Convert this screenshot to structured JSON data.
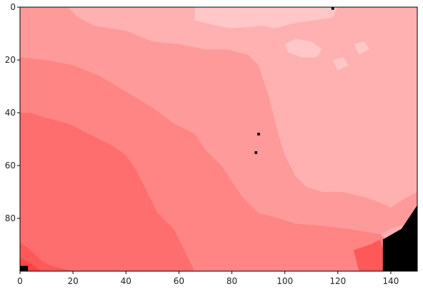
{
  "chart_data": {
    "type": "heatmap",
    "title": "",
    "xlabel": "",
    "ylabel": "",
    "xlim": [
      0,
      150
    ],
    "ylim": [
      100,
      0
    ],
    "grid": false,
    "legend": "none",
    "x_ticks": [
      0,
      20,
      40,
      60,
      80,
      100,
      120,
      140
    ],
    "y_ticks": [
      0,
      20,
      40,
      60,
      80
    ],
    "x_tick_labels": [
      "0",
      "20",
      "40",
      "60",
      "80",
      "100",
      "120",
      "140"
    ],
    "y_tick_labels": [
      "0",
      "20",
      "40",
      "60",
      "80"
    ],
    "levels": [
      {
        "name": "level-1",
        "color": "#ffc7c7"
      },
      {
        "name": "level-2",
        "color": "#ffb0b0"
      },
      {
        "name": "level-3",
        "color": "#ff9a9a"
      },
      {
        "name": "level-4",
        "color": "#ff8484"
      },
      {
        "name": "level-5",
        "color": "#ff6e6e"
      },
      {
        "name": "level-6",
        "color": "#ff5858"
      },
      {
        "name": "level-7",
        "color": "#ff4444"
      },
      {
        "name": "no-data",
        "color": "#000000"
      }
    ],
    "regions": [
      {
        "level": "level-1",
        "points": [
          [
            66,
            0
          ],
          [
            120,
            0
          ],
          [
            118,
            4
          ],
          [
            104,
            6
          ],
          [
            96,
            8
          ],
          [
            92,
            7
          ],
          [
            80,
            8
          ],
          [
            74,
            7
          ],
          [
            66,
            5
          ]
        ]
      },
      {
        "level": "level-1",
        "points": [
          [
            100,
            14
          ],
          [
            104,
            12
          ],
          [
            110,
            13
          ],
          [
            114,
            16
          ],
          [
            112,
            19
          ],
          [
            106,
            19
          ],
          [
            101,
            17
          ]
        ]
      },
      {
        "level": "level-1",
        "points": [
          [
            118,
            20
          ],
          [
            122,
            19
          ],
          [
            124,
            22
          ],
          [
            120,
            24
          ]
        ]
      },
      {
        "level": "level-1",
        "points": [
          [
            126,
            14
          ],
          [
            130,
            13
          ],
          [
            132,
            16
          ],
          [
            128,
            18
          ]
        ]
      },
      {
        "level": "level-3",
        "points": [
          [
            0,
            0
          ],
          [
            18,
            0
          ],
          [
            22,
            4
          ],
          [
            28,
            7
          ],
          [
            40,
            9
          ],
          [
            50,
            13
          ],
          [
            60,
            14
          ],
          [
            70,
            16
          ],
          [
            78,
            16
          ],
          [
            86,
            18
          ],
          [
            90,
            22
          ],
          [
            92,
            28
          ],
          [
            94,
            34
          ],
          [
            96,
            42
          ],
          [
            98,
            50
          ],
          [
            100,
            56
          ],
          [
            104,
            64
          ],
          [
            108,
            68
          ],
          [
            114,
            70
          ],
          [
            122,
            70
          ],
          [
            130,
            72
          ],
          [
            136,
            74
          ],
          [
            140,
            76
          ],
          [
            146,
            72
          ],
          [
            150,
            70
          ],
          [
            150,
            80
          ],
          [
            146,
            82
          ],
          [
            140,
            84
          ],
          [
            136,
            86
          ],
          [
            130,
            85
          ],
          [
            124,
            84
          ],
          [
            116,
            83
          ],
          [
            104,
            82
          ],
          [
            98,
            80
          ],
          [
            90,
            78
          ],
          [
            84,
            72
          ],
          [
            80,
            66
          ],
          [
            76,
            60
          ],
          [
            70,
            54
          ],
          [
            66,
            48
          ],
          [
            58,
            44
          ],
          [
            50,
            38
          ],
          [
            40,
            32
          ],
          [
            30,
            26
          ],
          [
            20,
            22
          ],
          [
            10,
            20
          ],
          [
            0,
            19
          ]
        ]
      },
      {
        "level": "level-4",
        "points": [
          [
            0,
            19
          ],
          [
            10,
            20
          ],
          [
            20,
            22
          ],
          [
            30,
            26
          ],
          [
            40,
            32
          ],
          [
            50,
            38
          ],
          [
            58,
            44
          ],
          [
            66,
            48
          ],
          [
            70,
            54
          ],
          [
            76,
            60
          ],
          [
            80,
            66
          ],
          [
            84,
            72
          ],
          [
            90,
            78
          ],
          [
            98,
            80
          ],
          [
            104,
            82
          ],
          [
            116,
            83
          ],
          [
            124,
            84
          ],
          [
            130,
            85
          ],
          [
            136,
            86
          ],
          [
            138,
            88
          ],
          [
            138,
            100
          ],
          [
            66,
            100
          ],
          [
            62,
            92
          ],
          [
            58,
            84
          ],
          [
            52,
            78
          ],
          [
            48,
            70
          ],
          [
            44,
            62
          ],
          [
            40,
            56
          ],
          [
            34,
            52
          ],
          [
            26,
            48
          ],
          [
            18,
            44
          ],
          [
            10,
            42
          ],
          [
            4,
            40
          ],
          [
            0,
            40
          ]
        ]
      },
      {
        "level": "level-4",
        "points": [
          [
            108,
            92
          ],
          [
            120,
            92
          ],
          [
            126,
            94
          ],
          [
            124,
            100
          ],
          [
            106,
            100
          ]
        ]
      },
      {
        "level": "level-5",
        "points": [
          [
            0,
            40
          ],
          [
            4,
            40
          ],
          [
            10,
            42
          ],
          [
            18,
            44
          ],
          [
            26,
            48
          ],
          [
            34,
            52
          ],
          [
            40,
            56
          ],
          [
            44,
            62
          ],
          [
            48,
            70
          ],
          [
            52,
            78
          ],
          [
            58,
            84
          ],
          [
            62,
            92
          ],
          [
            66,
            100
          ],
          [
            0,
            100
          ]
        ]
      },
      {
        "level": "level-6",
        "points": [
          [
            0,
            89
          ],
          [
            4,
            92
          ],
          [
            8,
            96
          ],
          [
            12,
            98
          ],
          [
            20,
            100
          ],
          [
            0,
            100
          ]
        ]
      },
      {
        "level": "level-6",
        "points": [
          [
            126,
            92
          ],
          [
            132,
            90
          ],
          [
            136,
            88
          ],
          [
            138,
            96
          ],
          [
            138,
            100
          ],
          [
            128,
            100
          ]
        ]
      },
      {
        "level": "level-7",
        "points": [
          [
            0,
            95
          ],
          [
            4,
            97
          ],
          [
            8,
            100
          ],
          [
            0,
            100
          ]
        ]
      },
      {
        "level": "no-data",
        "points": [
          [
            137,
            88
          ],
          [
            144,
            84
          ],
          [
            148,
            78
          ],
          [
            150,
            75
          ],
          [
            150,
            100
          ],
          [
            137,
            100
          ]
        ]
      },
      {
        "level": "no-data",
        "points": [
          [
            0,
            98
          ],
          [
            3,
            98
          ],
          [
            3,
            100
          ],
          [
            0,
            100
          ]
        ]
      },
      {
        "level": "no-data",
        "points": [
          [
            117.6,
            0
          ],
          [
            118.6,
            0
          ],
          [
            118.6,
            1
          ],
          [
            117.6,
            1
          ]
        ]
      },
      {
        "level": "no-data",
        "points": [
          [
            89.6,
            47.6
          ],
          [
            90.6,
            47.6
          ],
          [
            90.6,
            48.6
          ],
          [
            89.6,
            48.6
          ]
        ]
      },
      {
        "level": "no-data",
        "points": [
          [
            88.6,
            54.6
          ],
          [
            89.6,
            54.6
          ],
          [
            89.6,
            55.6
          ],
          [
            88.6,
            55.6
          ]
        ]
      }
    ]
  }
}
